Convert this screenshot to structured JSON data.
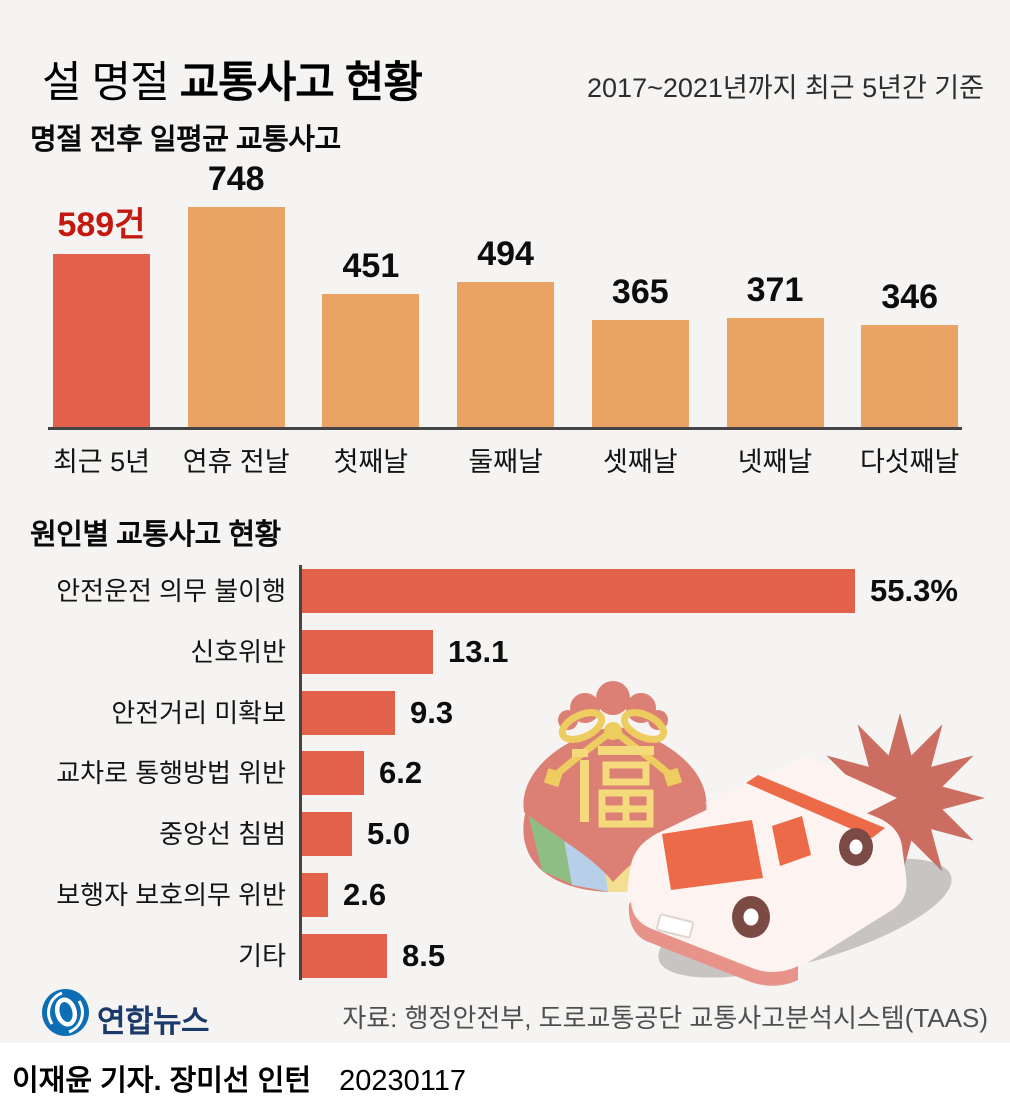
{
  "header": {
    "title_light": "설 명절",
    "title_bold": "교통사고 현황",
    "subtitle": "2017~2021년까지 최근 5년간 기준"
  },
  "chart_data": [
    {
      "type": "bar",
      "title": "명절 전후 일평균 교통사고",
      "categories": [
        "최근 5년",
        "연휴 전날",
        "첫째날",
        "둘째날",
        "셋째날",
        "넷째날",
        "다섯째날"
      ],
      "values": [
        589,
        748,
        451,
        494,
        365,
        371,
        346
      ],
      "value_labels": [
        "589건",
        "748",
        "451",
        "494",
        "365",
        "371",
        "346"
      ],
      "highlight_index": 0,
      "ylim": [
        0,
        748
      ],
      "grid": false,
      "legend": "none",
      "colors": {
        "bar": "#e9a365",
        "highlight_bar": "#e2614a",
        "highlight_value_label": "#c21a10",
        "value_label": "#0d0d0d",
        "baseline": "#444444"
      }
    },
    {
      "type": "bar-horizontal",
      "title": "원인별 교통사고 현황",
      "categories": [
        "안전운전 의무 불이행",
        "신호위반",
        "안전거리 미확보",
        "교차로 통행방법 위반",
        "중앙선 침범",
        "보행자 보호의무 위반",
        "기타"
      ],
      "values": [
        55.3,
        13.1,
        9.3,
        6.2,
        5.0,
        2.6,
        8.5
      ],
      "value_labels": [
        "55.3%",
        "13.1",
        "9.3",
        "6.2",
        "5.0",
        "2.6",
        "8.5"
      ],
      "xlim": [
        0,
        56
      ],
      "grid": false,
      "legend": "none",
      "colors": {
        "bar": "#e2614a",
        "axis": "#444444"
      }
    }
  ],
  "illustration": {
    "fortune_pouch_icon": "fortune-pouch",
    "pouch_character": "福",
    "car_icon": "car",
    "crash_star_icon": "crash-starburst"
  },
  "footer": {
    "logo_icon": "yonhap-logo",
    "logo_text": "연합뉴스",
    "source": "자료: 행정안전부, 도로교통공단 교통사고분석시스템(TAAS)",
    "credit": "이재윤 기자. 장미선 인턴",
    "date": "20230117"
  },
  "colors": {
    "background": "#f5f4f2",
    "credit_strip": "#ffffff",
    "logo_blue": "#0d6eb5",
    "logo_navy": "#1b3a6b",
    "source_text": "#4f4f4f"
  }
}
